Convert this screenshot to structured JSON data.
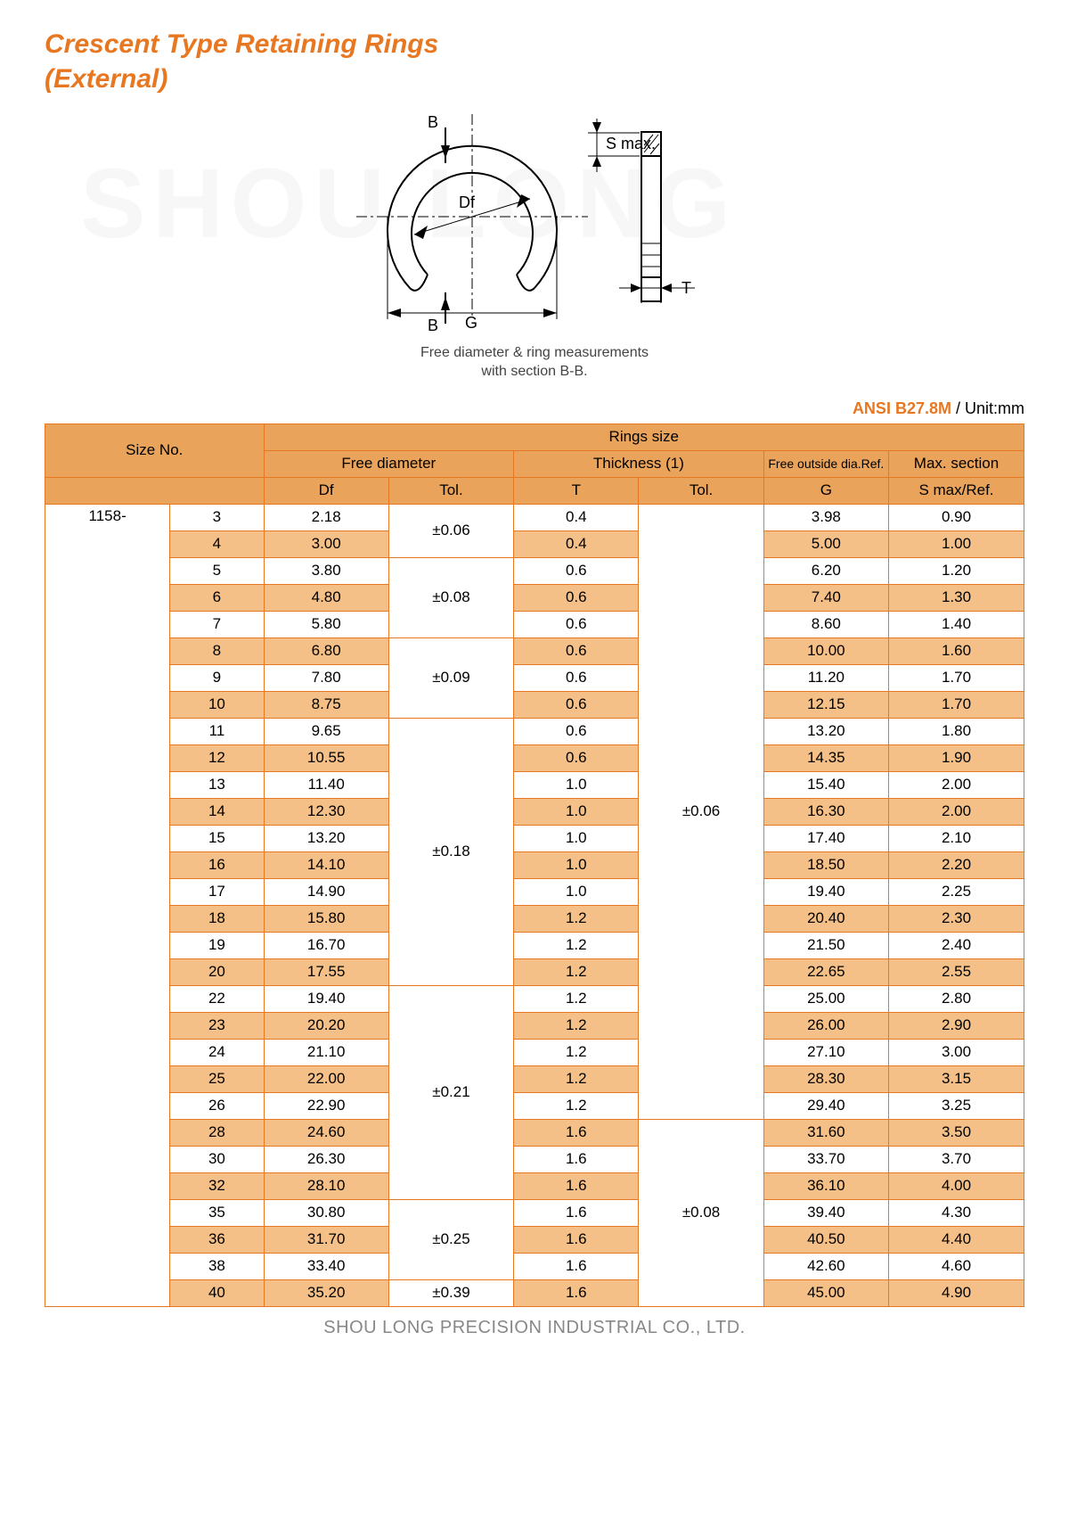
{
  "title_line1": "Crescent Type Retaining Rings",
  "title_line2": "(External)",
  "watermark": "SHOU LONG",
  "diagram": {
    "labels": {
      "B_top": "B",
      "B_bot": "B",
      "Smax": "S max.",
      "Df": "Df",
      "G": "G",
      "T": "T"
    },
    "caption_line1": "Free diameter & ring measurements",
    "caption_line2": "with section B-B."
  },
  "standard": "ANSI B27.8M",
  "unit_label": " / Unit:mm",
  "headers": {
    "size_no": "Size No.",
    "rings_size": "Rings size",
    "free_dia": "Free diameter",
    "thickness": "Thickness (1)",
    "free_outside": "Free outside dia.Ref.",
    "max_section": "Max. section",
    "Df": "Df",
    "Tol": "Tol.",
    "T": "T",
    "G": "G",
    "Smax": "S max/Ref."
  },
  "series": "1158-",
  "tol_groups_df": [
    {
      "label": "±0.06",
      "span": 2
    },
    {
      "label": "±0.08",
      "span": 3
    },
    {
      "label": "±0.09",
      "span": 3
    },
    {
      "label": "±0.18",
      "span": 10
    },
    {
      "label": "±0.21",
      "span": 8
    },
    {
      "label": "±0.25",
      "span": 3
    },
    {
      "label": "±0.39",
      "span": 1
    }
  ],
  "tol_groups_t": [
    {
      "label": "±0.06",
      "span": 23
    },
    {
      "label": "±0.08",
      "span": 7
    }
  ],
  "rows": [
    {
      "n": "3",
      "df": "2.18",
      "t": "0.4",
      "g": "3.98",
      "s": "0.90"
    },
    {
      "n": "4",
      "df": "3.00",
      "t": "0.4",
      "g": "5.00",
      "s": "1.00"
    },
    {
      "n": "5",
      "df": "3.80",
      "t": "0.6",
      "g": "6.20",
      "s": "1.20"
    },
    {
      "n": "6",
      "df": "4.80",
      "t": "0.6",
      "g": "7.40",
      "s": "1.30"
    },
    {
      "n": "7",
      "df": "5.80",
      "t": "0.6",
      "g": "8.60",
      "s": "1.40"
    },
    {
      "n": "8",
      "df": "6.80",
      "t": "0.6",
      "g": "10.00",
      "s": "1.60"
    },
    {
      "n": "9",
      "df": "7.80",
      "t": "0.6",
      "g": "11.20",
      "s": "1.70"
    },
    {
      "n": "10",
      "df": "8.75",
      "t": "0.6",
      "g": "12.15",
      "s": "1.70"
    },
    {
      "n": "11",
      "df": "9.65",
      "t": "0.6",
      "g": "13.20",
      "s": "1.80"
    },
    {
      "n": "12",
      "df": "10.55",
      "t": "0.6",
      "g": "14.35",
      "s": "1.90"
    },
    {
      "n": "13",
      "df": "11.40",
      "t": "1.0",
      "g": "15.40",
      "s": "2.00"
    },
    {
      "n": "14",
      "df": "12.30",
      "t": "1.0",
      "g": "16.30",
      "s": "2.00"
    },
    {
      "n": "15",
      "df": "13.20",
      "t": "1.0",
      "g": "17.40",
      "s": "2.10"
    },
    {
      "n": "16",
      "df": "14.10",
      "t": "1.0",
      "g": "18.50",
      "s": "2.20"
    },
    {
      "n": "17",
      "df": "14.90",
      "t": "1.0",
      "g": "19.40",
      "s": "2.25"
    },
    {
      "n": "18",
      "df": "15.80",
      "t": "1.2",
      "g": "20.40",
      "s": "2.30"
    },
    {
      "n": "19",
      "df": "16.70",
      "t": "1.2",
      "g": "21.50",
      "s": "2.40"
    },
    {
      "n": "20",
      "df": "17.55",
      "t": "1.2",
      "g": "22.65",
      "s": "2.55"
    },
    {
      "n": "22",
      "df": "19.40",
      "t": "1.2",
      "g": "25.00",
      "s": "2.80"
    },
    {
      "n": "23",
      "df": "20.20",
      "t": "1.2",
      "g": "26.00",
      "s": "2.90"
    },
    {
      "n": "24",
      "df": "21.10",
      "t": "1.2",
      "g": "27.10",
      "s": "3.00"
    },
    {
      "n": "25",
      "df": "22.00",
      "t": "1.2",
      "g": "28.30",
      "s": "3.15"
    },
    {
      "n": "26",
      "df": "22.90",
      "t": "1.2",
      "g": "29.40",
      "s": "3.25"
    },
    {
      "n": "28",
      "df": "24.60",
      "t": "1.6",
      "g": "31.60",
      "s": "3.50"
    },
    {
      "n": "30",
      "df": "26.30",
      "t": "1.6",
      "g": "33.70",
      "s": "3.70"
    },
    {
      "n": "32",
      "df": "28.10",
      "t": "1.6",
      "g": "36.10",
      "s": "4.00"
    },
    {
      "n": "35",
      "df": "30.80",
      "t": "1.6",
      "g": "39.40",
      "s": "4.30"
    },
    {
      "n": "36",
      "df": "31.70",
      "t": "1.6",
      "g": "40.50",
      "s": "4.40"
    },
    {
      "n": "38",
      "df": "33.40",
      "t": "1.6",
      "g": "42.60",
      "s": "4.60"
    },
    {
      "n": "40",
      "df": "35.20",
      "t": "1.6",
      "g": "45.00",
      "s": "4.90"
    }
  ],
  "footer": "SHOU LONG PRECISION INDUSTRIAL CO., LTD."
}
